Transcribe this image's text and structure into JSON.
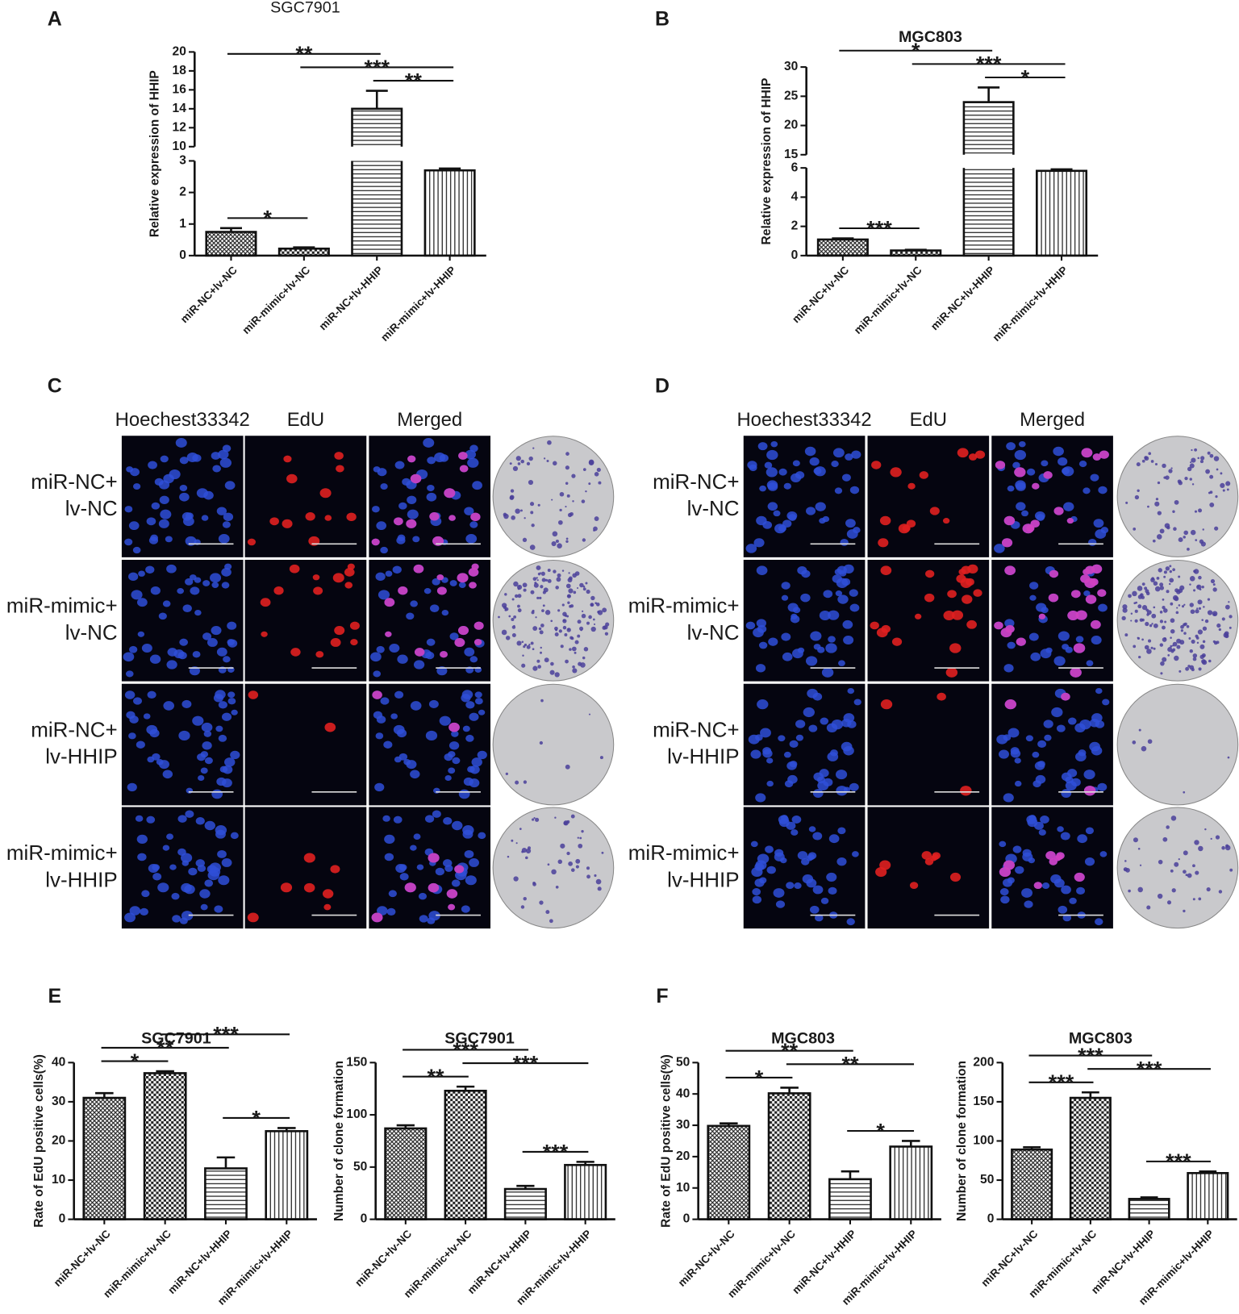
{
  "chart_data": [
    {
      "type": "bar",
      "panel": "A",
      "title": "SGC7901",
      "title_bold": false,
      "ylabel": "Relative expression of HHIP",
      "categories": [
        "miR-NC+lv-NC",
        "miR-mimic+lv-NC",
        "miR-NC+lv-HHIP",
        "miR-mimic+lv-HHIP"
      ],
      "values": [
        0.75,
        0.22,
        14,
        2.7
      ],
      "errors": [
        0.12,
        0.04,
        1.9,
        0.06
      ],
      "ylim": [
        0,
        20
      ],
      "ybreak": [
        3,
        10
      ],
      "yticks": [
        0,
        1,
        2,
        3,
        10,
        12,
        14,
        16,
        18,
        20
      ],
      "patterns": [
        "crosshatch",
        "checker",
        "horizontal",
        "vertical"
      ],
      "annotations": [
        {
          "text": "*",
          "from": 0,
          "to": 1
        },
        {
          "text": "**",
          "from": 2,
          "to": 3
        },
        {
          "text": "***",
          "from": 1,
          "to": 3
        },
        {
          "text": "**",
          "from": 0,
          "to": 2
        }
      ]
    },
    {
      "type": "bar",
      "panel": "B",
      "title": "MGC803",
      "title_bold": true,
      "ylabel": "Relative expression of HHIP",
      "categories": [
        "miR-NC+lv-NC",
        "miR-mimic+lv-NC",
        "miR-NC+lv-HHIP",
        "miR-mimic+lv-HHIP"
      ],
      "values": [
        1.1,
        0.35,
        24,
        5.8
      ],
      "errors": [
        0.08,
        0.05,
        2.5,
        0.1
      ],
      "ylim": [
        0,
        30
      ],
      "ybreak": [
        6,
        15
      ],
      "yticks": [
        0,
        2,
        4,
        6,
        15,
        20,
        25,
        30
      ],
      "patterns": [
        "crosshatch",
        "checker",
        "horizontal",
        "vertical"
      ],
      "annotations": [
        {
          "text": "***",
          "from": 0,
          "to": 1
        },
        {
          "text": "*",
          "from": 2,
          "to": 3
        },
        {
          "text": "***",
          "from": 1,
          "to": 3
        },
        {
          "text": "*",
          "from": 0,
          "to": 2
        }
      ]
    },
    {
      "type": "bar",
      "panel": "E",
      "title": "SGC7901",
      "title_bold": true,
      "ylabel": "Rate of EdU positive cells(%)",
      "categories": [
        "miR-NC+lv-NC",
        "miR-mimic+lv-NC",
        "miR-NC+lv-HHIP",
        "miR-mimic+lv-HHIP"
      ],
      "values": [
        31,
        37.3,
        13,
        22.5
      ],
      "errors": [
        1.2,
        0.5,
        2.8,
        0.8
      ],
      "ylim": [
        0,
        40
      ],
      "yticks": [
        0,
        10,
        20,
        30,
        40
      ],
      "patterns": [
        "crosshatch",
        "checker",
        "horizontal",
        "vertical"
      ],
      "annotations": [
        {
          "text": "*",
          "from": 0,
          "to": 1
        },
        {
          "text": "*",
          "from": 2,
          "to": 3
        },
        {
          "text": "**",
          "from": 0,
          "to": 2
        },
        {
          "text": "***",
          "from": 1,
          "to": 3
        }
      ]
    },
    {
      "type": "bar",
      "title": "SGC7901",
      "title_bold": true,
      "ylabel": "Number of clone formation",
      "categories": [
        "miR-NC+lv-NC",
        "miR-mimic+lv-NC",
        "miR-NC+lv-HHIP",
        "miR-mimic+lv-HHIP"
      ],
      "values": [
        87,
        123,
        29,
        52
      ],
      "errors": [
        3,
        4,
        3,
        3
      ],
      "ylim": [
        0,
        150
      ],
      "yticks": [
        0,
        50,
        100,
        150
      ],
      "patterns": [
        "crosshatch",
        "checker",
        "horizontal",
        "vertical"
      ],
      "annotations": [
        {
          "text": "**",
          "from": 0,
          "to": 1
        },
        {
          "text": "***",
          "from": 2,
          "to": 3
        },
        {
          "text": "***",
          "from": 1,
          "to": 3
        },
        {
          "text": "***",
          "from": 0,
          "to": 2
        }
      ]
    },
    {
      "type": "bar",
      "panel": "F",
      "title": "MGC803",
      "title_bold": true,
      "ylabel": "Rate of EdU positive cells(%)",
      "categories": [
        "miR-NC+lv-NC",
        "miR-mimic+lv-NC",
        "miR-NC+lv-HHIP",
        "miR-mimic+lv-HHIP"
      ],
      "values": [
        29.8,
        40.2,
        12.8,
        23.2
      ],
      "errors": [
        0.8,
        1.8,
        2.5,
        1.8
      ],
      "ylim": [
        0,
        50
      ],
      "yticks": [
        0,
        10,
        20,
        30,
        40,
        50
      ],
      "patterns": [
        "crosshatch",
        "checker",
        "horizontal",
        "vertical"
      ],
      "annotations": [
        {
          "text": "*",
          "from": 0,
          "to": 1
        },
        {
          "text": "*",
          "from": 2,
          "to": 3
        },
        {
          "text": "**",
          "from": 1,
          "to": 3
        },
        {
          "text": "**",
          "from": 0,
          "to": 2
        }
      ]
    },
    {
      "type": "bar",
      "title": "MGC803",
      "title_bold": true,
      "ylabel": "Number of clone formation",
      "categories": [
        "miR-NC+lv-NC",
        "miR-mimic+lv-NC",
        "miR-NC+lv-HHIP",
        "miR-mimic+lv-HHIP"
      ],
      "values": [
        89,
        155,
        26,
        59
      ],
      "errors": [
        3,
        7,
        2,
        2
      ],
      "ylim": [
        0,
        200
      ],
      "yticks": [
        0,
        50,
        100,
        150,
        200
      ],
      "patterns": [
        "crosshatch",
        "checker",
        "horizontal",
        "vertical"
      ],
      "annotations": [
        {
          "text": "***",
          "from": 0,
          "to": 1
        },
        {
          "text": "***",
          "from": 2,
          "to": 3
        },
        {
          "text": "***",
          "from": 1,
          "to": 3
        },
        {
          "text": "***",
          "from": 0,
          "to": 2
        }
      ]
    }
  ],
  "image_panels": [
    {
      "panel": "C",
      "columns": [
        "Hoechest33342",
        "EdU",
        "Merged"
      ],
      "rows": [
        [
          "miR-NC+",
          "lv-NC"
        ],
        [
          "miR-mimic+",
          "lv-NC"
        ],
        [
          "miR-NC+",
          "lv-HHIP"
        ],
        [
          "miR-mimic+",
          "lv-HHIP"
        ]
      ]
    },
    {
      "panel": "D",
      "columns": [
        "Hoechest33342",
        "EdU",
        "Merged"
      ],
      "rows": [
        [
          "miR-NC+",
          "lv-NC"
        ],
        [
          "miR-mimic+",
          "lv-NC"
        ],
        [
          "miR-NC+",
          "lv-HHIP"
        ],
        [
          "miR-mimic+",
          "lv-HHIP"
        ]
      ]
    }
  ]
}
